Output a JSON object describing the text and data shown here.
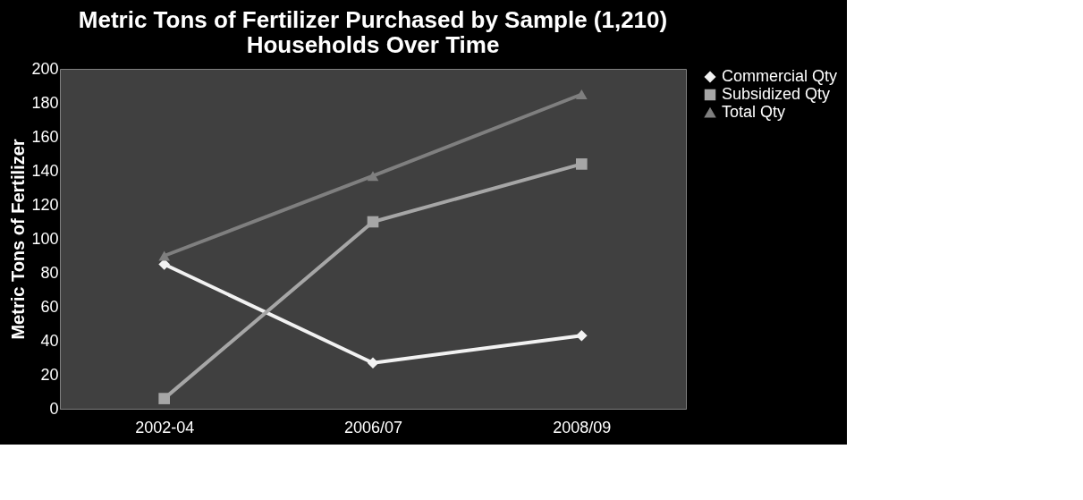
{
  "chart_data": {
    "type": "line",
    "title": [
      "Metric Tons of Fertilizer Purchased by Sample (1,210)",
      "Households Over Time"
    ],
    "ylabel": "Metric Tons of Fertilizer",
    "categories": [
      "2002-04",
      "2006/07",
      "2008/09"
    ],
    "series": [
      {
        "name": "Commercial Qty",
        "color": "#f2f2f2",
        "marker": "diamond",
        "values": [
          85,
          27,
          43
        ]
      },
      {
        "name": "Subsidized Qty",
        "color": "#a6a6a6",
        "marker": "square",
        "values": [
          6,
          110,
          144
        ]
      },
      {
        "name": "Total Qty",
        "color": "#7f7f7f",
        "marker": "triangle",
        "values": [
          90,
          137,
          185
        ]
      }
    ],
    "ylim": [
      0,
      200
    ],
    "yticks": [
      0,
      20,
      40,
      60,
      80,
      100,
      120,
      140,
      160,
      180,
      200
    ],
    "grid": false,
    "legend": "right",
    "line_style": "solid"
  }
}
